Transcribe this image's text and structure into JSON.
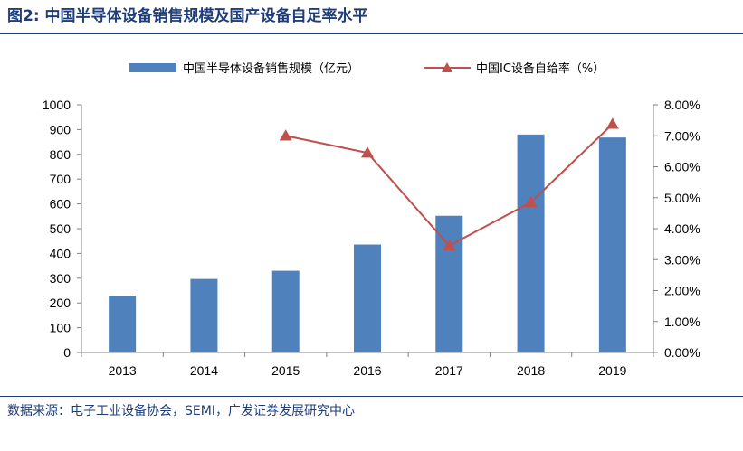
{
  "figure": {
    "title": "图2:  中国半导体设备销售规模及国产设备自足率水平",
    "source": "数据来源：电子工业设备协会，SEMI，广发证券发展研究中心",
    "colors": {
      "title": "#1f3e78",
      "rule": "#1f3e78"
    }
  },
  "chart_data": {
    "type": "bar",
    "categories": [
      "2013",
      "2014",
      "2015",
      "2016",
      "2017",
      "2018",
      "2019"
    ],
    "series": [
      {
        "name": "中国半导体设备销售规模（亿元）",
        "type": "bar",
        "axis": "left",
        "color": "#4f81bd",
        "values": [
          230,
          297,
          330,
          436,
          552,
          880,
          868
        ]
      },
      {
        "name": "中国IC设备自给率（%）",
        "type": "line",
        "marker": "triangle",
        "axis": "right",
        "color": "#c0504d",
        "values": [
          null,
          null,
          0.07,
          0.0645,
          0.0345,
          0.0485,
          0.0738
        ]
      }
    ],
    "ylim_left": [
      0,
      1000
    ],
    "yticks_left": [
      "0",
      "100",
      "200",
      "300",
      "400",
      "500",
      "600",
      "700",
      "800",
      "900",
      "1000"
    ],
    "ylim_right": [
      0,
      0.08
    ],
    "yticks_right": [
      "0.00%",
      "1.00%",
      "2.00%",
      "3.00%",
      "4.00%",
      "5.00%",
      "6.00%",
      "7.00%",
      "8.00%"
    ],
    "xlabel": "",
    "ylabel": "",
    "grid": false,
    "legend_position": "top"
  }
}
